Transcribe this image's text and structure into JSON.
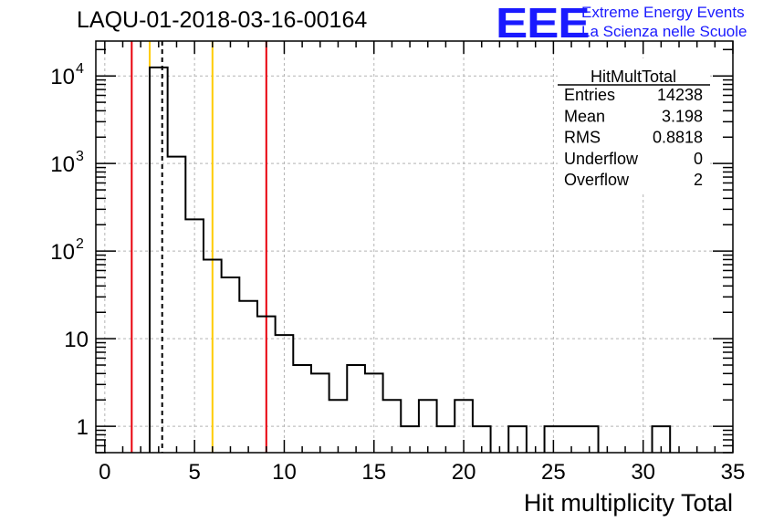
{
  "header": {
    "run_title": "LAQU-01-2018-03-16-00164",
    "logo_text": "EEE",
    "logo_line1": "Extreme Energy Events",
    "logo_line2": "La Scienza nelle Scuole"
  },
  "colors": {
    "logo": "#1a1aff",
    "red_line": "#e8000b",
    "yellow_line": "#ffcc00",
    "grid": "#b4b4b4"
  },
  "stats": {
    "name": "HitMultTotal",
    "rows": [
      {
        "label": "Entries",
        "value": "14238"
      },
      {
        "label": "Mean",
        "value": "3.198"
      },
      {
        "label": "RMS",
        "value": "0.8818"
      },
      {
        "label": "Underflow",
        "value": "0"
      },
      {
        "label": "Overflow",
        "value": "2"
      }
    ]
  },
  "chart_data": {
    "type": "histogram",
    "xlabel": "Hit multiplicity Total",
    "ylabel": "",
    "xlim": [
      -0.5,
      35
    ],
    "ylim": [
      0.5,
      25000
    ],
    "yscale": "log",
    "grid": true,
    "x_ticks": [
      0,
      5,
      10,
      15,
      20,
      25,
      30,
      35
    ],
    "y_ticks": [
      {
        "value": 1,
        "label": "1"
      },
      {
        "value": 10,
        "label": "10"
      },
      {
        "value": 100,
        "label": "10",
        "exp": "2"
      },
      {
        "value": 1000,
        "label": "10",
        "exp": "3"
      },
      {
        "value": 10000,
        "label": "10",
        "exp": "4"
      }
    ],
    "bin_edges": [
      -0.5,
      0.5,
      1.5,
      2.5,
      3.5,
      4.5,
      5.5,
      6.5,
      7.5,
      8.5,
      9.5,
      10.5,
      11.5,
      12.5,
      13.5,
      14.5,
      15.5,
      16.5,
      17.5,
      18.5,
      19.5,
      20.5,
      21.5,
      22.5,
      23.5,
      24.5,
      25.5,
      26.5,
      27.5,
      28.5,
      29.5,
      30.5,
      31.5,
      32.5,
      33.5,
      34.5,
      35
    ],
    "counts": [
      0,
      0,
      0,
      12500,
      1200,
      230,
      80,
      50,
      27,
      18,
      11,
      5,
      4,
      2,
      5,
      4,
      2,
      1,
      2,
      1,
      2,
      1,
      0,
      1,
      0,
      1,
      1,
      1,
      0,
      0,
      0,
      1,
      0,
      0,
      0,
      0
    ],
    "vertical_lines": [
      {
        "x": 1.5,
        "color": "red",
        "style": "solid"
      },
      {
        "x": 2.5,
        "color": "yellow",
        "style": "solid"
      },
      {
        "x": 3.198,
        "color": "black",
        "style": "dashed"
      },
      {
        "x": 6.0,
        "color": "yellow",
        "style": "solid"
      },
      {
        "x": 9.0,
        "color": "red",
        "style": "solid"
      }
    ]
  }
}
